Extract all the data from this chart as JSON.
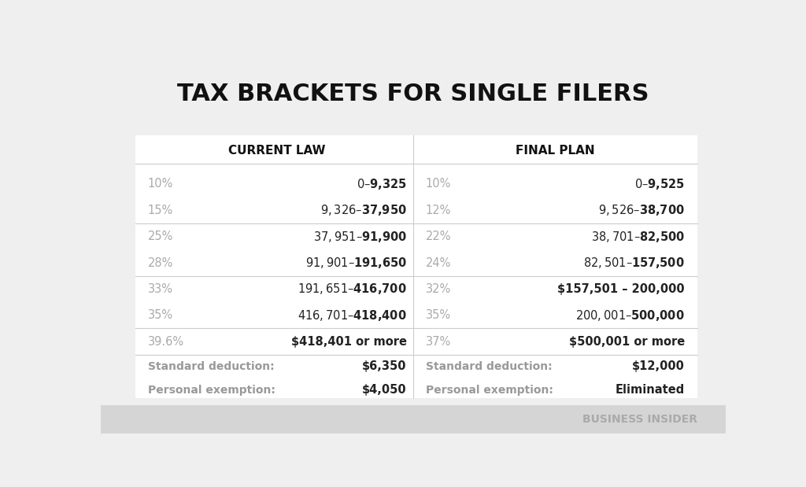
{
  "title": "TAX BRACKETS FOR SINGLE FILERS",
  "title_fontsize": 22,
  "title_fontweight": "bold",
  "background_color": "#efefef",
  "table_background": "#ffffff",
  "header_left": "CURRENT LAW",
  "header_right": "FINAL PLAN",
  "header_fontsize": 11,
  "current_law": [
    {
      "rate": "10%",
      "range": "$0 – $9,325"
    },
    {
      "rate": "15%",
      "range": "$9,326 – $37,950"
    },
    {
      "rate": "25%",
      "range": "$37,951 – $91,900"
    },
    {
      "rate": "28%",
      "range": "$91,901 – $191,650"
    },
    {
      "rate": "33%",
      "range": "$191,651 – $416,700"
    },
    {
      "rate": "35%",
      "range": "$416,701 – $418,400"
    },
    {
      "rate": "39.6%",
      "range": "$418,401 or more"
    }
  ],
  "final_plan": [
    {
      "rate": "10%",
      "range": "$0 – $9,525"
    },
    {
      "rate": "12%",
      "range": "$9,526 – $38,700"
    },
    {
      "rate": "22%",
      "range": "$38,701 – $82,500"
    },
    {
      "rate": "24%",
      "range": "$82,501 – $157,500"
    },
    {
      "rate": "32%",
      "range": "$157,501 – 200,000"
    },
    {
      "rate": "35%",
      "range": "$200,001 – $500,000"
    },
    {
      "rate": "37%",
      "range": "$500,001 or more"
    }
  ],
  "current_footer": [
    {
      "label": "Standard deduction:",
      "value": "$6,350"
    },
    {
      "label": "Personal exemption:",
      "value": "$4,050"
    }
  ],
  "final_footer": [
    {
      "label": "Standard deduction:",
      "value": "$12,000"
    },
    {
      "label": "Personal exemption:",
      "value": "Eliminated"
    }
  ],
  "rate_color": "#aaaaaa",
  "range_color_current": "#222222",
  "range_color_final": "#222222",
  "footer_label_color": "#999999",
  "footer_value_color_current": "#222222",
  "footer_value_color_final": "#222222",
  "watermark": "BUSINESS INSIDER",
  "watermark_color": "#aaaaaa",
  "watermark_fontsize": 10,
  "bottom_bar_color": "#d5d5d5",
  "divider_color": "#cccccc",
  "row_fontsize": 10.5,
  "footer_fontsize": 10.0
}
